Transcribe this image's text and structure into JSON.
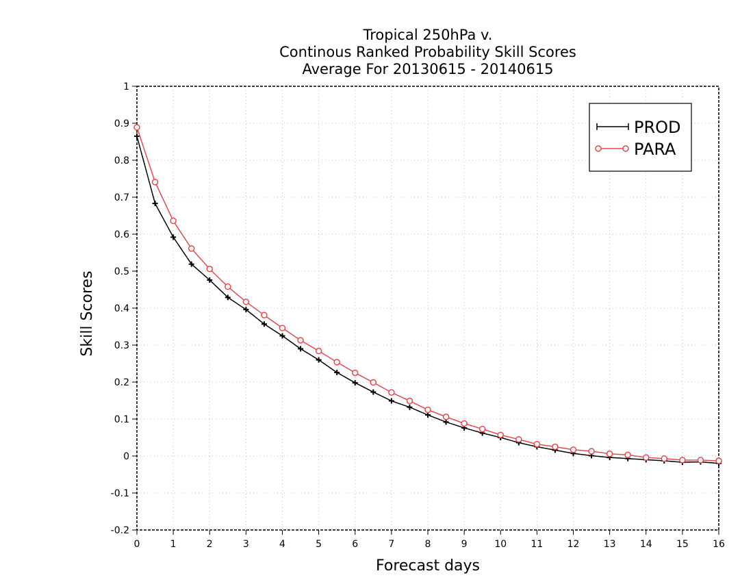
{
  "chart_data": {
    "type": "line",
    "title_lines": [
      "Tropical 250hPa v.",
      "Continous Ranked Probability Skill Scores",
      "Average For 20130615 - 20140615"
    ],
    "xlabel": "Forecast days",
    "ylabel": "Skill Scores",
    "xlim": [
      0,
      16
    ],
    "ylim": [
      -0.2,
      1
    ],
    "x_ticks": [
      0,
      1,
      2,
      3,
      4,
      5,
      6,
      7,
      8,
      9,
      10,
      11,
      12,
      13,
      14,
      15,
      16
    ],
    "y_ticks": [
      -0.2,
      -0.1,
      0,
      0.1,
      0.2,
      0.3,
      0.4,
      0.5,
      0.6,
      0.7,
      0.8,
      0.9,
      1
    ],
    "y_tick_labels": [
      "-0.2",
      "-0.1",
      "0",
      "0.1",
      "0.2",
      "0.3",
      "0.4",
      "0.5",
      "0.6",
      "0.7",
      "0.8",
      "0.9",
      "1"
    ],
    "grid": true,
    "legend_position": "top-right",
    "x": [
      0,
      0.5,
      1,
      1.5,
      2,
      2.5,
      3,
      3.5,
      4,
      4.5,
      5,
      5.5,
      6,
      6.5,
      7,
      7.5,
      8,
      8.5,
      9,
      9.5,
      10,
      10.5,
      11,
      11.5,
      12,
      12.5,
      13,
      13.5,
      14,
      14.5,
      15,
      15.5,
      16
    ],
    "series": [
      {
        "name": "PROD",
        "color": "#000000",
        "marker": "plus",
        "values": [
          0.865,
          0.683,
          0.592,
          0.519,
          0.476,
          0.429,
          0.396,
          0.357,
          0.325,
          0.29,
          0.26,
          0.226,
          0.198,
          0.173,
          0.149,
          0.132,
          0.111,
          0.092,
          0.076,
          0.062,
          0.05,
          0.036,
          0.025,
          0.016,
          0.007,
          0.001,
          -0.004,
          -0.007,
          -0.01,
          -0.013,
          -0.017,
          -0.016,
          -0.02
        ]
      },
      {
        "name": "PARA",
        "color": "#e8474a",
        "marker": "circle",
        "values": [
          0.889,
          0.741,
          0.636,
          0.561,
          0.506,
          0.458,
          0.417,
          0.381,
          0.346,
          0.313,
          0.284,
          0.254,
          0.225,
          0.199,
          0.172,
          0.149,
          0.125,
          0.106,
          0.088,
          0.073,
          0.057,
          0.045,
          0.032,
          0.025,
          0.017,
          0.013,
          0.006,
          0.003,
          -0.004,
          -0.007,
          -0.011,
          -0.011,
          -0.013
        ]
      }
    ]
  }
}
